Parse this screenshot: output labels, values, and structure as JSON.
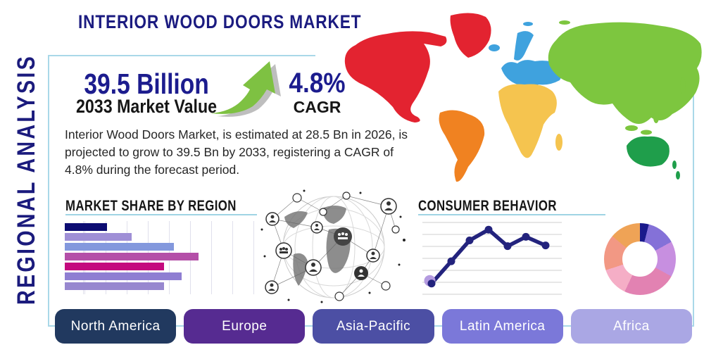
{
  "sidebar_label": "REGIONAL ANALYSIS",
  "title": "INTERIOR WOOD DOORS MARKET",
  "stats": {
    "market_value": "39.5 Billion",
    "market_value_label": "2033 Market Value",
    "cagr_value": "4.8%",
    "cagr_label": "CAGR",
    "arrow_icon": "growth-arrow",
    "arrow_color": "#7ec142"
  },
  "description": "Interior Wood Doors Market, is estimated at 28.5 Bn in 2026, is projected to grow to 39.5 Bn by 2033, registering a CAGR of 4.8% during the forecast period.",
  "map": {
    "region_colors": {
      "north-america": "#e32330",
      "greenland": "#e32330",
      "south-america": "#f08221",
      "europe": "#3fa2de",
      "africa": "#f5c44f",
      "asia": "#7dc63f",
      "australia": "#1f9e4b"
    }
  },
  "chart_data": [
    {
      "type": "bar",
      "title": "MARKET SHARE BY REGION",
      "orientation": "horizontal",
      "categories": [
        "bar-1",
        "bar-2",
        "bar-3",
        "bar-4",
        "bar-5",
        "bar-6",
        "bar-7"
      ],
      "values": [
        22,
        35,
        57,
        70,
        52,
        61,
        52
      ],
      "value_unit": "percent-of-chart-width (estimated, no axis labels shown)",
      "colors": [
        "#0c0c72",
        "#9f8fd6",
        "#8398dd",
        "#b44fa8",
        "#c40a7e",
        "#8f7ed2",
        "#9787cf"
      ],
      "grid": "vertical-light"
    },
    {
      "type": "line",
      "title": "CONSUMER BEHAVIOR",
      "x_pct": [
        7.5,
        21.5,
        34.5,
        48,
        61.5,
        74.5,
        88.5
      ],
      "y_pct": [
        15,
        46,
        75,
        90,
        67,
        80,
        68
      ],
      "value_unit": "percent-of-plot-height (estimated, no axis labels shown)",
      "color": "#23237d",
      "first_point_halo_color": "#b49be0",
      "gridline_count": 7,
      "grid": "horizontal-light"
    },
    {
      "type": "pie",
      "donut": true,
      "title": "",
      "segments": [
        {
          "value": 4,
          "color": "#1a1a8c"
        },
        {
          "value": 13,
          "color": "#8471d8"
        },
        {
          "value": 16,
          "color": "#c78fe0"
        },
        {
          "value": 24,
          "color": "#e282b2"
        },
        {
          "value": 13,
          "color": "#f5aec6"
        },
        {
          "value": 16,
          "color": "#f29884"
        },
        {
          "value": 14,
          "color": "#efa356"
        }
      ],
      "value_unit": "percent (estimated, no labels shown)"
    }
  ],
  "regions": [
    {
      "label": "North America",
      "color": "#21395f"
    },
    {
      "label": "Europe",
      "color": "#562b91"
    },
    {
      "label": "Asia-Pacific",
      "color": "#4c4fa4"
    },
    {
      "label": "Latin America",
      "color": "#7b78d9"
    },
    {
      "label": "Africa",
      "color": "#aaa7e4"
    }
  ]
}
